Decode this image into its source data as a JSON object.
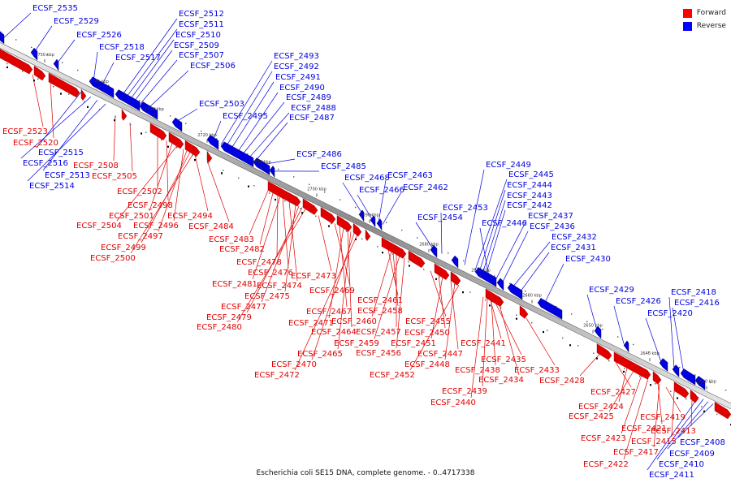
{
  "colors": {
    "forward": "#e00000",
    "reverse": "#0000e0",
    "backbone": "#888888"
  },
  "legend": [
    {
      "label": "Forward",
      "color": "#ff0000"
    },
    {
      "label": "Reverse",
      "color": "#0000ff"
    }
  ],
  "caption": "Escherichia coli SE15 DNA, complete genome. - 0..4717338",
  "ticks": [
    "2750 kbp",
    "2740 kbp",
    "2730 kbp",
    "2720 kbp",
    "2710 kbp",
    "2700 kbp",
    "2690 kbp",
    "2680 kbp",
    "2670 kbp",
    "2660 kbp",
    "2650 kbp",
    "2640 kbp",
    "2630 kbp"
  ],
  "reverse_labels": [
    "ECSF_2535",
    "ECSF_2529",
    "ECSF_2526",
    "ECSF_2518",
    "ECSF_2517",
    "ECSF_2512",
    "ECSF_2511",
    "ECSF_2510",
    "ECSF_2509",
    "ECSF_2507",
    "ECSF_2506",
    "ECSF_2503",
    "ECSF_2495",
    "ECSF_2493",
    "ECSF_2492",
    "ECSF_2491",
    "ECSF_2490",
    "ECSF_2489",
    "ECSF_2488",
    "ECSF_2487",
    "ECSF_2486",
    "ECSF_2485",
    "ECSF_2468",
    "ECSF_2466",
    "ECSF_2463",
    "ECSF_2462",
    "ECSF_2453",
    "ECSF_2454",
    "ECSF_2449",
    "ECSF_2445",
    "ECSF_2444",
    "ECSF_2443",
    "ECSF_2442",
    "ECSF_2446",
    "ECSF_2437",
    "ECSF_2436",
    "ECSF_2432",
    "ECSF_2431",
    "ECSF_2430",
    "ECSF_2429",
    "ECSF_2426",
    "ECSF_2420",
    "ECSF_2418",
    "ECSF_2416",
    "ECSF_2515",
    "ECSF_2516",
    "ECSF_2513",
    "ECSF_2514",
    "ECSF_2408",
    "ECSF_2409",
    "ECSF_2410",
    "ECSF_2411"
  ],
  "forward_labels": [
    "ECSF_2523",
    "ECSF_2520",
    "ECSF_2508",
    "ECSF_2505",
    "ECSF_2502",
    "ECSF_2498",
    "ECSF_2501",
    "ECSF_2504",
    "ECSF_2494",
    "ECSF_2496",
    "ECSF_2497",
    "ECSF_2499",
    "ECSF_2500",
    "ECSF_2484",
    "ECSF_2483",
    "ECSF_2482",
    "ECSF_2478",
    "ECSF_2476",
    "ECSF_2481",
    "ECSF_2474",
    "ECSF_2473",
    "ECSF_2475",
    "ECSF_2477",
    "ECSF_2479",
    "ECSF_2480",
    "ECSF_2469",
    "ECSF_2467",
    "ECSF_2471",
    "ECSF_2464",
    "ECSF_2465",
    "ECSF_2470",
    "ECSF_2472",
    "ECSF_2461",
    "ECSF_2458",
    "ECSF_2460",
    "ECSF_2457",
    "ECSF_2459",
    "ECSF_2456",
    "ECSF_2455",
    "ECSF_2450",
    "ECSF_2451",
    "ECSF_2447",
    "ECSF_2448",
    "ECSF_2452",
    "ECSF_2441",
    "ECSF_2435",
    "ECSF_2438",
    "ECSF_2434",
    "ECSF_2439",
    "ECSF_2440",
    "ECSF_2433",
    "ECSF_2428",
    "ECSF_2427",
    "ECSF_2424",
    "ECSF_2425",
    "ECSF_2419",
    "ECSF_2421",
    "ECSF_2423",
    "ECSF_2415",
    "ECSF_2417",
    "ECSF_2413",
    "ECSF_2422"
  ]
}
